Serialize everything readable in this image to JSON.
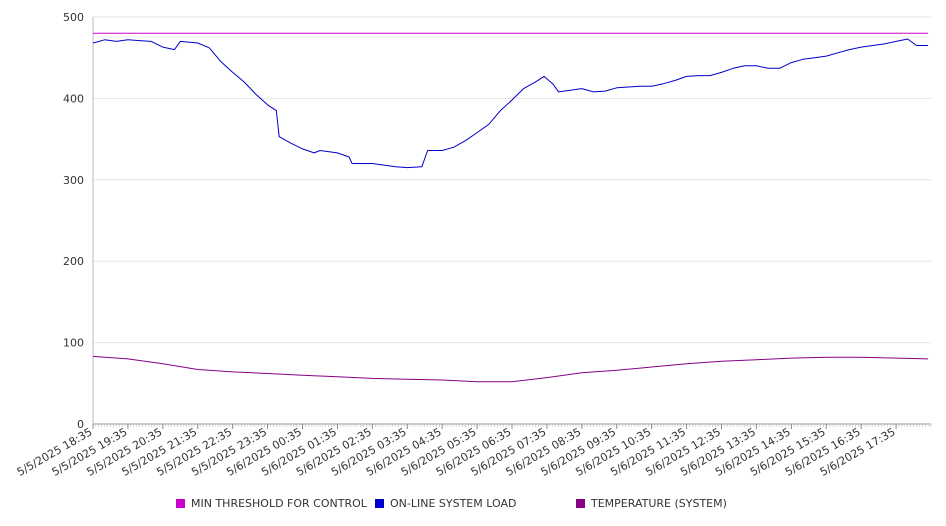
{
  "chart_data": {
    "type": "line",
    "title": "",
    "xlabel": "",
    "ylabel": "",
    "ylim": [
      0,
      500
    ],
    "yticks": [
      0,
      100,
      200,
      300,
      400,
      500
    ],
    "x_tick_labels": [
      "5/5/2025 18:35",
      "5/5/2025 19:35",
      "5/5/2025 20:35",
      "5/5/2025 21:35",
      "5/5/2025 22:35",
      "5/5/2025 23:35",
      "5/6/2025 00:35",
      "5/6/2025 01:35",
      "5/6/2025 02:35",
      "5/6/2025 03:35",
      "5/6/2025 04:35",
      "5/6/2025 05:35",
      "5/6/2025 06:35",
      "5/6/2025 07:35",
      "5/6/2025 08:35",
      "5/6/2025 09:35",
      "5/6/2025 10:35",
      "5/6/2025 11:35",
      "5/6/2025 12:35",
      "5/6/2025 13:35",
      "5/6/2025 14:35",
      "5/6/2025 15:35",
      "5/6/2025 16:35",
      "5/6/2025 17:35"
    ],
    "grid": true,
    "legend_position": "bottom",
    "series": [
      {
        "name": "MIN THRESHOLD FOR CONTROL",
        "color": "#cc00cc",
        "points": [
          [
            "5/5/2025 18:35",
            480
          ],
          [
            "5/6/2025 18:30",
            480
          ]
        ]
      },
      {
        "name": "ON-LINE SYSTEM LOAD",
        "color": "#0000cc",
        "points": [
          [
            "5/5/2025 18:35",
            468
          ],
          [
            "5/5/2025 18:55",
            472
          ],
          [
            "5/5/2025 19:15",
            470
          ],
          [
            "5/5/2025 19:35",
            472
          ],
          [
            "5/5/2025 19:55",
            471
          ],
          [
            "5/5/2025 20:15",
            470
          ],
          [
            "5/5/2025 20:35",
            463
          ],
          [
            "5/5/2025 20:55",
            460
          ],
          [
            "5/5/2025 21:05",
            470
          ],
          [
            "5/5/2025 21:35",
            468
          ],
          [
            "5/5/2025 21:55",
            462
          ],
          [
            "5/5/2025 22:15",
            445
          ],
          [
            "5/5/2025 22:35",
            432
          ],
          [
            "5/5/2025 22:55",
            420
          ],
          [
            "5/5/2025 23:15",
            405
          ],
          [
            "5/5/2025 23:35",
            392
          ],
          [
            "5/5/2025 23:50",
            385
          ],
          [
            "5/5/2025 23:55",
            353
          ],
          [
            "5/6/2025 00:15",
            345
          ],
          [
            "5/6/2025 00:35",
            338
          ],
          [
            "5/6/2025 00:55",
            333
          ],
          [
            "5/6/2025 01:05",
            336
          ],
          [
            "5/6/2025 01:35",
            333
          ],
          [
            "5/6/2025 01:55",
            328
          ],
          [
            "5/6/2025 02:00",
            320
          ],
          [
            "5/6/2025 02:35",
            320
          ],
          [
            "5/6/2025 02:55",
            318
          ],
          [
            "5/6/2025 03:15",
            316
          ],
          [
            "5/6/2025 03:35",
            315
          ],
          [
            "5/6/2025 04:00",
            316
          ],
          [
            "5/6/2025 04:10",
            336
          ],
          [
            "5/6/2025 04:35",
            336
          ],
          [
            "5/6/2025 04:55",
            340
          ],
          [
            "5/6/2025 05:15",
            348
          ],
          [
            "5/6/2025 05:35",
            358
          ],
          [
            "5/6/2025 05:55",
            368
          ],
          [
            "5/6/2025 06:15",
            385
          ],
          [
            "5/6/2025 06:35",
            398
          ],
          [
            "5/6/2025 06:55",
            412
          ],
          [
            "5/6/2025 07:15",
            420
          ],
          [
            "5/6/2025 07:30",
            427
          ],
          [
            "5/6/2025 07:45",
            418
          ],
          [
            "5/6/2025 07:55",
            408
          ],
          [
            "5/6/2025 08:35",
            412
          ],
          [
            "5/6/2025 08:55",
            408
          ],
          [
            "5/6/2025 09:15",
            409
          ],
          [
            "5/6/2025 09:35",
            413
          ],
          [
            "5/6/2025 09:55",
            414
          ],
          [
            "5/6/2025 10:15",
            415
          ],
          [
            "5/6/2025 10:35",
            415
          ],
          [
            "5/6/2025 10:55",
            418
          ],
          [
            "5/6/2025 11:15",
            422
          ],
          [
            "5/6/2025 11:35",
            427
          ],
          [
            "5/6/2025 11:55",
            428
          ],
          [
            "5/6/2025 12:15",
            428
          ],
          [
            "5/6/2025 12:35",
            432
          ],
          [
            "5/6/2025 12:55",
            437
          ],
          [
            "5/6/2025 13:15",
            440
          ],
          [
            "5/6/2025 13:35",
            440
          ],
          [
            "5/6/2025 13:55",
            437
          ],
          [
            "5/6/2025 14:15",
            437
          ],
          [
            "5/6/2025 14:35",
            444
          ],
          [
            "5/6/2025 14:55",
            448
          ],
          [
            "5/6/2025 15:15",
            450
          ],
          [
            "5/6/2025 15:35",
            452
          ],
          [
            "5/6/2025 15:55",
            456
          ],
          [
            "5/6/2025 16:15",
            460
          ],
          [
            "5/6/2025 16:35",
            463
          ],
          [
            "5/6/2025 16:55",
            465
          ],
          [
            "5/6/2025 17:15",
            467
          ],
          [
            "5/6/2025 17:35",
            470
          ],
          [
            "5/6/2025 17:55",
            473
          ],
          [
            "5/6/2025 18:10",
            465
          ],
          [
            "5/6/2025 18:30",
            465
          ]
        ]
      },
      {
        "name": "TEMPERATURE (SYSTEM)",
        "color": "#880088",
        "points": [
          [
            "5/5/2025 18:35",
            83
          ],
          [
            "5/5/2025 19:35",
            80
          ],
          [
            "5/5/2025 20:35",
            74
          ],
          [
            "5/5/2025 21:35",
            67
          ],
          [
            "5/5/2025 22:35",
            64
          ],
          [
            "5/5/2025 23:35",
            62
          ],
          [
            "5/6/2025 00:35",
            60
          ],
          [
            "5/6/2025 01:35",
            58
          ],
          [
            "5/6/2025 02:35",
            56
          ],
          [
            "5/6/2025 03:35",
            55
          ],
          [
            "5/6/2025 04:35",
            54
          ],
          [
            "5/6/2025 05:35",
            52
          ],
          [
            "5/6/2025 06:35",
            52
          ],
          [
            "5/6/2025 07:35",
            57
          ],
          [
            "5/6/2025 08:35",
            63
          ],
          [
            "5/6/2025 09:35",
            66
          ],
          [
            "5/6/2025 10:35",
            70
          ],
          [
            "5/6/2025 11:35",
            74
          ],
          [
            "5/6/2025 12:35",
            77
          ],
          [
            "5/6/2025 13:35",
            79
          ],
          [
            "5/6/2025 14:35",
            81
          ],
          [
            "5/6/2025 15:35",
            82
          ],
          [
            "5/6/2025 16:35",
            82
          ],
          [
            "5/6/2025 17:35",
            81
          ],
          [
            "5/6/2025 18:30",
            80
          ]
        ]
      }
    ]
  }
}
